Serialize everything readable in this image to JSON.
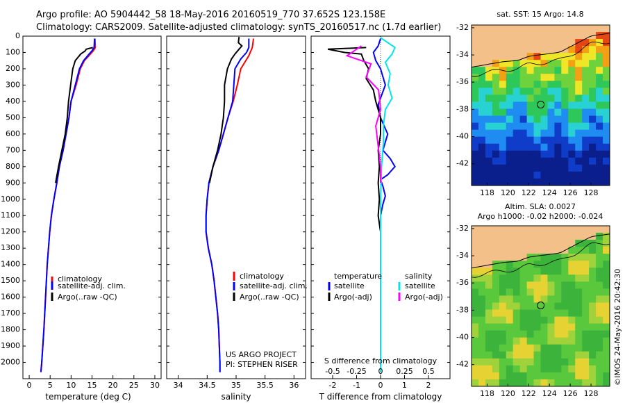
{
  "header": {
    "line1": "Argo profile: AO 5904442_58 18-May-2016 20160519_770 37.652S 123.158E",
    "line2": "Climatology: CARS2009. Satellite-adjusted climatology: synTS_20160517.nc (1.7d earlier)"
  },
  "colors": {
    "climatology": "#ff0000",
    "satellite": "#0000ff",
    "argo": "#000000",
    "sal_satellite": "#00e5ee",
    "sal_argo": "#ff00ff",
    "land": "#f4c08a"
  },
  "chart_data": [
    {
      "type": "line",
      "title": "",
      "xlabel": "temperature (deg C)",
      "ylabel": "",
      "xlim": [
        -1.5,
        31.5
      ],
      "ylim": [
        2100,
        0
      ],
      "xticks": [
        "0",
        "5",
        "10",
        "15",
        "20",
        "25",
        "30"
      ],
      "yticks": [
        "0",
        "100",
        "200",
        "300",
        "400",
        "500",
        "600",
        "700",
        "800",
        "900",
        "1000",
        "1100",
        "1200",
        "1300",
        "1400",
        "1500",
        "1600",
        "1700",
        "1800",
        "1900",
        "2000"
      ],
      "legend": [
        "climatology",
        "satellite-adj. clim.",
        "Argo(..raw -QC)"
      ],
      "series": [
        {
          "name": "climatology",
          "points": [
            [
              15.7,
              15
            ],
            [
              15.8,
              70
            ],
            [
              15.3,
              90
            ],
            [
              14.6,
              110
            ],
            [
              13.2,
              150
            ],
            [
              12.2,
              200
            ],
            [
              11.2,
              300
            ],
            [
              10.0,
              400
            ],
            [
              9.5,
              500
            ],
            [
              8.8,
              600
            ],
            [
              8.1,
              700
            ],
            [
              7.2,
              800
            ],
            [
              6.6,
              900
            ],
            [
              5.9,
              1000
            ],
            [
              5.3,
              1100
            ],
            [
              4.9,
              1200
            ],
            [
              4.3,
              1400
            ],
            [
              3.9,
              1600
            ],
            [
              3.5,
              1800
            ],
            [
              3.0,
              2000
            ],
            [
              2.8,
              2060
            ]
          ]
        },
        {
          "name": "satellite-adj. clim.",
          "points": [
            [
              15.6,
              15
            ],
            [
              15.5,
              70
            ],
            [
              15.0,
              90
            ],
            [
              14.3,
              110
            ],
            [
              13.0,
              150
            ],
            [
              12.0,
              200
            ],
            [
              11.0,
              300
            ],
            [
              10.0,
              400
            ],
            [
              9.5,
              500
            ],
            [
              8.8,
              600
            ],
            [
              8.1,
              700
            ],
            [
              7.2,
              800
            ],
            [
              6.6,
              900
            ],
            [
              5.9,
              1000
            ],
            [
              5.3,
              1100
            ],
            [
              4.9,
              1200
            ],
            [
              4.3,
              1400
            ],
            [
              3.9,
              1600
            ],
            [
              3.5,
              1800
            ],
            [
              3.0,
              2000
            ],
            [
              2.8,
              2060
            ]
          ]
        },
        {
          "name": "Argo(..raw -QC)",
          "points": [
            [
              15.2,
              70
            ],
            [
              13.6,
              80
            ],
            [
              13.4,
              90
            ],
            [
              12.3,
              110
            ],
            [
              11.0,
              150
            ],
            [
              10.4,
              200
            ],
            [
              9.9,
              300
            ],
            [
              9.4,
              400
            ],
            [
              9.1,
              500
            ],
            [
              8.6,
              600
            ],
            [
              7.8,
              700
            ],
            [
              7.0,
              800
            ],
            [
              6.3,
              900
            ]
          ]
        }
      ]
    },
    {
      "type": "line",
      "title": "",
      "xlabel": "salinity",
      "xlim": [
        33.8,
        36.2
      ],
      "ylim": [
        2100,
        0
      ],
      "xticks": [
        "34",
        "34.5",
        "35",
        "35.5",
        "36"
      ],
      "legend": [
        "climatology",
        "satellite-adj. clim.",
        "Argo(..raw -QC)"
      ],
      "annotations": [
        "US ARGO PROJECT",
        "PI: STEPHEN RISER"
      ],
      "series": [
        {
          "name": "climatology",
          "points": [
            [
              35.3,
              15
            ],
            [
              35.28,
              70
            ],
            [
              35.22,
              120
            ],
            [
              35.15,
              160
            ],
            [
              35.08,
              200
            ],
            [
              35.02,
              300
            ],
            [
              34.95,
              400
            ],
            [
              34.86,
              500
            ],
            [
              34.78,
              600
            ],
            [
              34.7,
              700
            ],
            [
              34.6,
              800
            ],
            [
              34.53,
              900
            ],
            [
              34.5,
              1000
            ],
            [
              34.48,
              1100
            ],
            [
              34.48,
              1200
            ],
            [
              34.52,
              1300
            ],
            [
              34.58,
              1400
            ],
            [
              34.62,
              1500
            ],
            [
              34.65,
              1600
            ],
            [
              34.68,
              1700
            ],
            [
              34.7,
              1800
            ],
            [
              34.71,
              1900
            ],
            [
              34.72,
              2000
            ],
            [
              34.72,
              2060
            ]
          ]
        },
        {
          "name": "satellite-adj. clim.",
          "points": [
            [
              35.22,
              15
            ],
            [
              35.22,
              70
            ],
            [
              35.18,
              100
            ],
            [
              35.08,
              140
            ],
            [
              34.98,
              200
            ],
            [
              34.96,
              300
            ],
            [
              34.94,
              400
            ],
            [
              34.86,
              500
            ],
            [
              34.78,
              600
            ],
            [
              34.7,
              700
            ],
            [
              34.6,
              800
            ],
            [
              34.53,
              900
            ],
            [
              34.5,
              1000
            ],
            [
              34.48,
              1100
            ],
            [
              34.48,
              1200
            ],
            [
              34.52,
              1300
            ],
            [
              34.58,
              1400
            ],
            [
              34.62,
              1500
            ],
            [
              34.65,
              1600
            ],
            [
              34.68,
              1700
            ],
            [
              34.7,
              1800
            ],
            [
              34.71,
              1900
            ],
            [
              34.72,
              2000
            ],
            [
              34.72,
              2060
            ]
          ]
        },
        {
          "name": "Argo(..raw -QC)",
          "points": [
            [
              35.05,
              5
            ],
            [
              35.04,
              40
            ],
            [
              35.1,
              60
            ],
            [
              35.05,
              80
            ],
            [
              34.98,
              110
            ],
            [
              34.92,
              140
            ],
            [
              34.85,
              200
            ],
            [
              34.8,
              300
            ],
            [
              34.8,
              400
            ],
            [
              34.78,
              500
            ],
            [
              34.74,
              600
            ],
            [
              34.68,
              700
            ],
            [
              34.6,
              800
            ],
            [
              34.54,
              900
            ]
          ]
        }
      ]
    },
    {
      "type": "line",
      "title": "",
      "xlabel": "T difference from climatology",
      "xlabel2": "S difference from climatology",
      "xlim": [
        -2.9,
        2.9
      ],
      "ylim": [
        2100,
        0
      ],
      "xticks": [
        "-2",
        "-1",
        "0",
        "1",
        "2"
      ],
      "xticks_s": [
        "-0.5",
        "-0.25",
        "0",
        "0.25",
        "0.5"
      ],
      "legend_t": [
        "temperature",
        "satellite",
        "Argo(-adj)"
      ],
      "legend_s": [
        "salinity",
        "satellite",
        "Argo(-adj)"
      ],
      "series": [
        {
          "name": "T satellite",
          "points": [
            [
              0.0,
              15
            ],
            [
              -0.1,
              60
            ],
            [
              -0.3,
              100
            ],
            [
              -0.2,
              150
            ],
            [
              0.0,
              200
            ],
            [
              0.2,
              300
            ],
            [
              0.0,
              380
            ],
            [
              -0.1,
              420
            ],
            [
              0.0,
              500
            ],
            [
              0.3,
              600
            ],
            [
              0.1,
              700
            ],
            [
              0.4,
              750
            ],
            [
              0.6,
              800
            ],
            [
              0.3,
              850
            ],
            [
              0.0,
              880
            ],
            [
              0.1,
              920
            ],
            [
              0.2,
              980
            ],
            [
              0.1,
              1030
            ],
            [
              0.0,
              1100
            ],
            [
              0.0,
              1300
            ],
            [
              0.0,
              1500
            ],
            [
              0.0,
              2060
            ]
          ]
        },
        {
          "name": "T Argo(-adj)",
          "points": [
            [
              -0.6,
              70
            ],
            [
              -2.2,
              80
            ],
            [
              -1.5,
              100
            ],
            [
              -0.8,
              110
            ],
            [
              -0.7,
              150
            ],
            [
              -0.5,
              200
            ],
            [
              -0.6,
              260
            ],
            [
              -0.3,
              330
            ],
            [
              -0.2,
              400
            ],
            [
              -0.1,
              450
            ],
            [
              0.0,
              500
            ],
            [
              0.0,
              600
            ],
            [
              -0.1,
              700
            ],
            [
              -0.05,
              800
            ],
            [
              -0.1,
              900
            ],
            [
              -0.05,
              1000
            ],
            [
              -0.1,
              1100
            ],
            [
              0.0,
              1200
            ],
            [
              0.0,
              1300
            ]
          ]
        },
        {
          "name": "S satellite",
          "points": [
            [
              0.0,
              10
            ],
            [
              0.15,
              70
            ],
            [
              0.12,
              110
            ],
            [
              0.05,
              160
            ],
            [
              0.1,
              230
            ],
            [
              0.08,
              300
            ],
            [
              0.12,
              380
            ],
            [
              0.05,
              450
            ],
            [
              0.03,
              550
            ],
            [
              0.03,
              650
            ],
            [
              0.01,
              800
            ],
            [
              0.0,
              1000
            ],
            [
              0.0,
              1300
            ],
            [
              0.0,
              2060
            ]
          ]
        },
        {
          "name": "S Argo(-adj)",
          "points": [
            [
              -0.2,
              60
            ],
            [
              -0.35,
              120
            ],
            [
              -0.1,
              170
            ],
            [
              -0.15,
              250
            ],
            [
              -0.02,
              330
            ],
            [
              0.0,
              450
            ],
            [
              -0.05,
              550
            ],
            [
              -0.03,
              650
            ],
            [
              0.0,
              800
            ],
            [
              0.0,
              900
            ]
          ]
        }
      ]
    },
    {
      "type": "heatmap",
      "title": "sat. SST: 15 Argo: 14.8",
      "xticks": [
        "118",
        "120",
        "122",
        "124",
        "126",
        "128"
      ],
      "yticks": [
        "-32",
        "-34",
        "-36",
        "-38",
        "-40",
        "-42"
      ],
      "xlim": [
        116.5,
        129.8
      ],
      "ylim": [
        -43.6,
        -31.8
      ],
      "marker": {
        "lon": 123.158,
        "lat": -37.652
      }
    },
    {
      "type": "heatmap",
      "title": "Altim. SLA: 0.0027",
      "subtitle": "Argo h1000: -0.02 h2000: -0.024",
      "xticks": [
        "118",
        "120",
        "122",
        "124",
        "126",
        "128"
      ],
      "yticks": [
        "-32",
        "-34",
        "-36",
        "-38",
        "-40",
        "-42"
      ],
      "xlim": [
        116.5,
        129.8
      ],
      "ylim": [
        -43.6,
        -31.8
      ],
      "marker": {
        "lon": 123.158,
        "lat": -37.652
      }
    }
  ],
  "footer": {
    "credit": "©IMOS 24-May-2016 20:42:30"
  }
}
